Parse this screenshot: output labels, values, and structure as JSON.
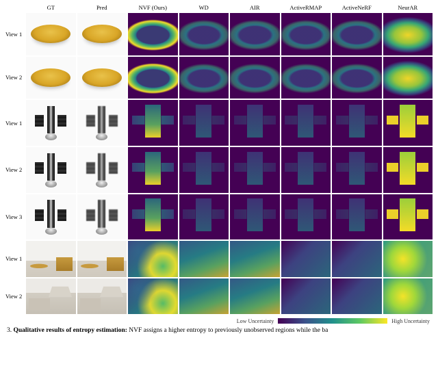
{
  "figure": {
    "columns": [
      "GT",
      "Pred",
      "NVF (Ours)",
      "WD",
      "AIR",
      "ActiveRMAP",
      "ActiveNeRF",
      "NeurAR"
    ],
    "rows": [
      {
        "label": "View 1",
        "subject": "cake",
        "variant": 1
      },
      {
        "label": "View 2",
        "subject": "cake",
        "variant": 2
      },
      {
        "label": "View 1",
        "subject": "sat",
        "variant": 1
      },
      {
        "label": "View 2",
        "subject": "sat",
        "variant": 2
      },
      {
        "label": "View 3",
        "subject": "sat",
        "variant": 3
      },
      {
        "label": "View 1",
        "subject": "room",
        "variant": 1
      },
      {
        "label": "View 2",
        "subject": "room",
        "variant": 2
      }
    ],
    "entropy_style_by_method": {
      "NVF (Ours)": {
        "cake": "ent-cake",
        "sat": "ent-sat",
        "room": "ent-room"
      },
      "WD": {
        "cake": "ent-cake low",
        "sat": "ent-sat low",
        "room": "ent-room mid"
      },
      "AIR": {
        "cake": "ent-cake low",
        "sat": "ent-sat low",
        "room": "ent-room mid"
      },
      "ActiveRMAP": {
        "cake": "ent-cake low",
        "sat": "ent-sat low",
        "room": "ent-room low"
      },
      "ActiveNeRF": {
        "cake": "ent-cake low",
        "sat": "ent-sat low",
        "room": "ent-room low"
      },
      "NeurAR": {
        "cake": "ent-cake bright",
        "sat": "ent-sat bright",
        "room": "ent-room bright"
      }
    },
    "colorbar": {
      "low_label": "Low Uncertainty",
      "high_label": "High Uncertainty",
      "gradient": [
        "#440154",
        "#3b528b",
        "#21918c",
        "#5ec962",
        "#fde725"
      ]
    },
    "caption_prefix": "3. ",
    "caption_bold": "Qualitative results of entropy estimation:",
    "caption_rest": " NVF assigns a higher entropy to previously unobserved regions while the ba",
    "background_color": "#ffffff",
    "tile_bg_viridis": "#440154"
  }
}
